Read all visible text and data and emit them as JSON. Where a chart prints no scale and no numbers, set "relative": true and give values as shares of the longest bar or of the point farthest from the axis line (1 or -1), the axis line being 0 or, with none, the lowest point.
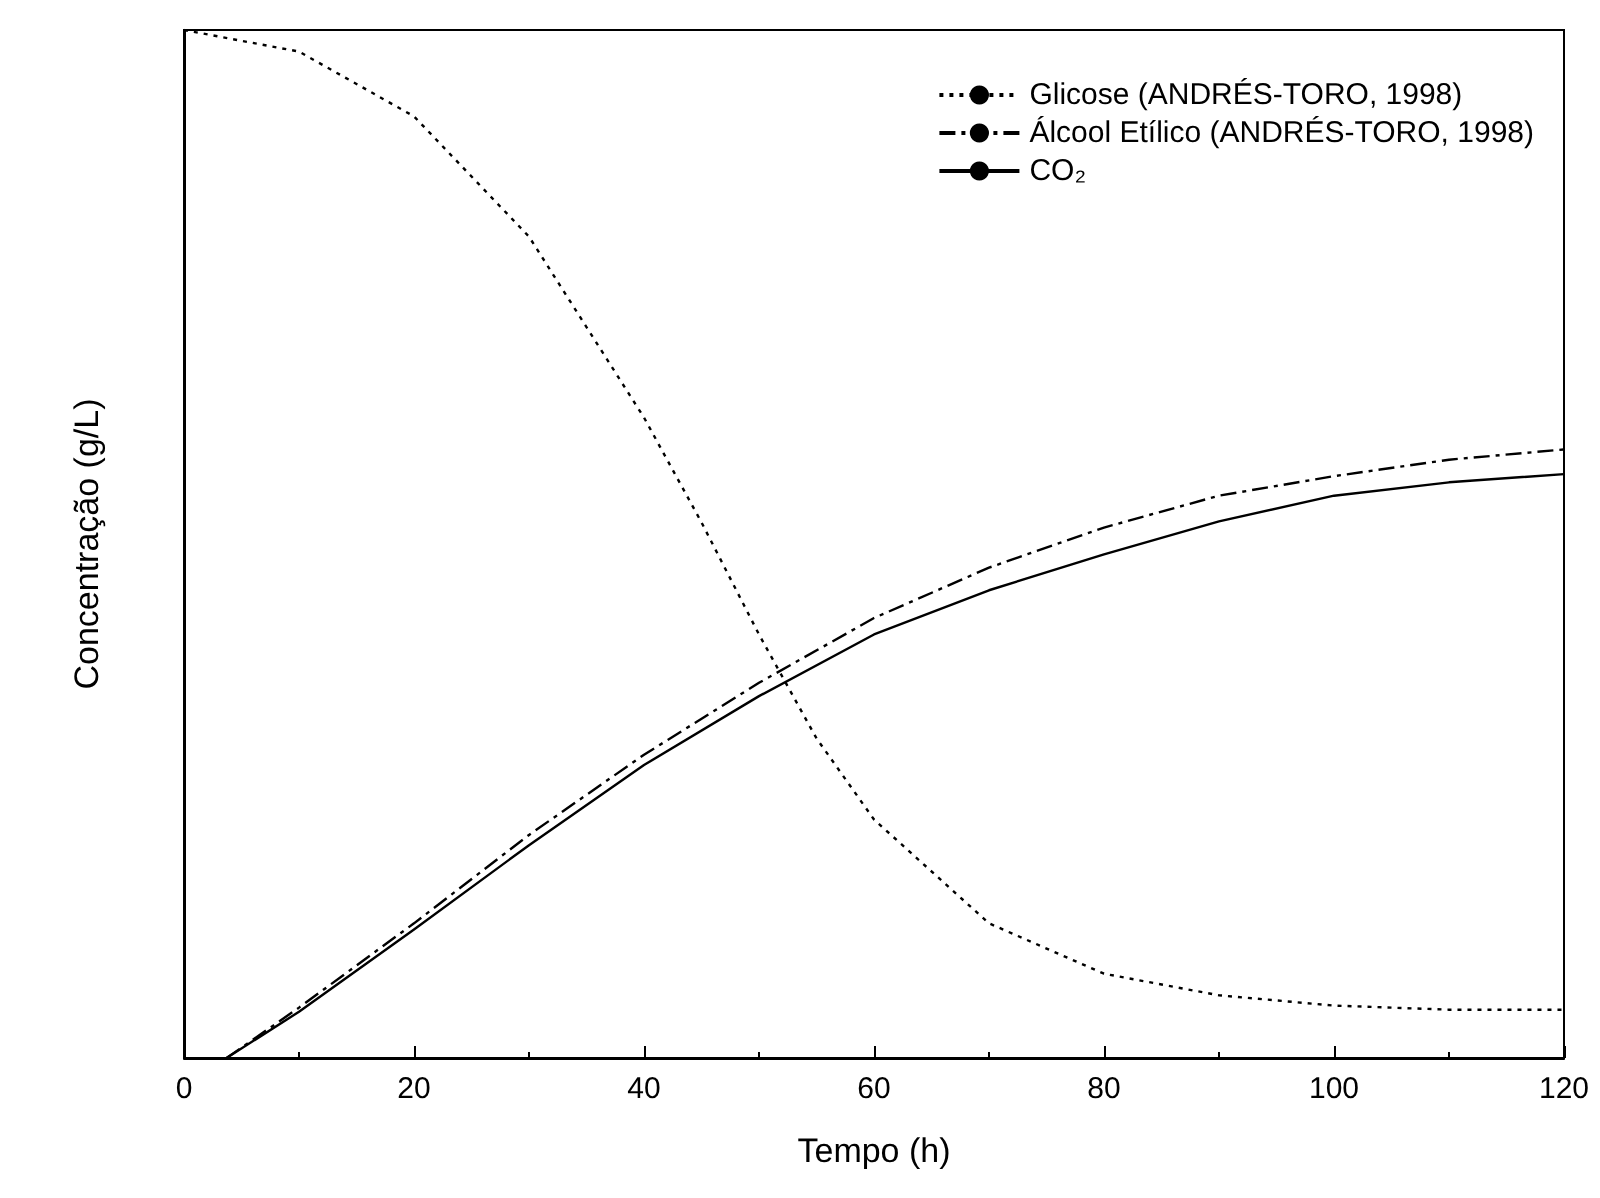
{
  "chart_data": {
    "type": "line",
    "xlabel": "Tempo (h)",
    "ylabel": "Concentração (g/L)",
    "relative": true,
    "xlim": [
      0,
      120
    ],
    "xticks": [
      0,
      20,
      40,
      60,
      80,
      100,
      120
    ],
    "grid": false,
    "legend": "top right",
    "marker": "none",
    "series": [
      {
        "name": "Glicose (ANDRÉS-TORO, 1998)",
        "color": "#000000",
        "line_style": "dotted",
        "x": [
          0,
          10,
          20,
          30,
          40,
          45,
          50,
          55,
          60,
          70,
          80,
          90,
          100,
          110,
          120
        ],
        "values": [
          1.0,
          0.979,
          0.916,
          0.799,
          0.623,
          0.521,
          0.412,
          0.311,
          0.232,
          0.131,
          0.082,
          0.061,
          0.051,
          0.047,
          0.047
        ]
      },
      {
        "name": "Álcool Etílico (ANDRÉS-TORO, 1998)",
        "color": "#000000",
        "line_style": "dashed",
        "x": [
          3.7,
          10,
          20,
          30,
          40,
          50,
          60,
          70,
          80,
          90,
          100,
          110,
          120
        ],
        "values": [
          0,
          0.049,
          0.131,
          0.217,
          0.295,
          0.365,
          0.428,
          0.477,
          0.516,
          0.547,
          0.566,
          0.582,
          0.592
        ]
      },
      {
        "name": "CO₂",
        "color": "#000000",
        "line_style": "solid",
        "x": [
          3.7,
          10,
          20,
          30,
          40,
          50,
          60,
          70,
          80,
          90,
          100,
          110,
          120
        ],
        "values": [
          0,
          0.045,
          0.125,
          0.207,
          0.285,
          0.352,
          0.412,
          0.455,
          0.49,
          0.522,
          0.547,
          0.56,
          0.568
        ]
      }
    ]
  }
}
